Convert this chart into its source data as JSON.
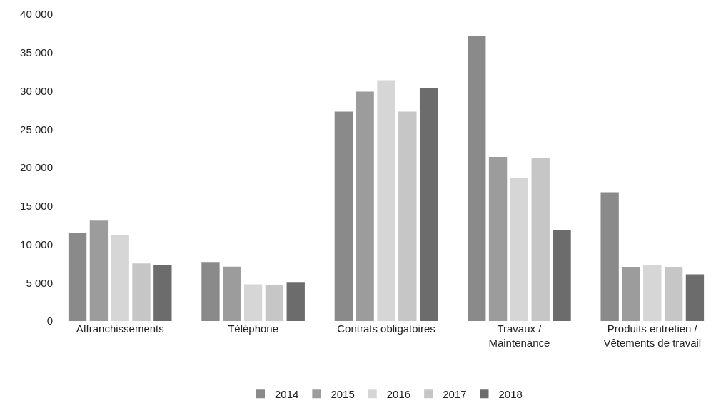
{
  "chart_data": {
    "type": "bar",
    "categories": [
      "Affranchissements",
      "Téléphone",
      "Contrats obligatoires",
      "Travaux /\nMaintenance",
      "Produits entretien /\nVêtements de travail"
    ],
    "series": [
      {
        "name": "2014",
        "color": "#8a8a8a",
        "values": [
          11500,
          7600,
          27300,
          37200,
          16800
        ]
      },
      {
        "name": "2015",
        "color": "#9c9c9c",
        "values": [
          13100,
          7100,
          29900,
          21400,
          7000
        ]
      },
      {
        "name": "2016",
        "color": "#d6d6d6",
        "values": [
          11200,
          4800,
          31400,
          18700,
          7300
        ]
      },
      {
        "name": "2017",
        "color": "#c6c6c6",
        "values": [
          7500,
          4700,
          27300,
          21200,
          7000
        ]
      },
      {
        "name": "2018",
        "color": "#6c6c6c",
        "values": [
          7300,
          5000,
          30400,
          11900,
          6100
        ]
      }
    ],
    "ylim": [
      0,
      40000
    ],
    "yticks": [
      {
        "value": 0,
        "label": "0"
      },
      {
        "value": 5000,
        "label": "5 000"
      },
      {
        "value": 10000,
        "label": "10 000"
      },
      {
        "value": 15000,
        "label": "15 000"
      },
      {
        "value": 20000,
        "label": "20 000"
      },
      {
        "value": 25000,
        "label": "25 000"
      },
      {
        "value": 30000,
        "label": "30 000"
      },
      {
        "value": 35000,
        "label": "35 000"
      },
      {
        "value": 40000,
        "label": "40 000"
      }
    ],
    "grid": false,
    "legend": "bottom"
  }
}
